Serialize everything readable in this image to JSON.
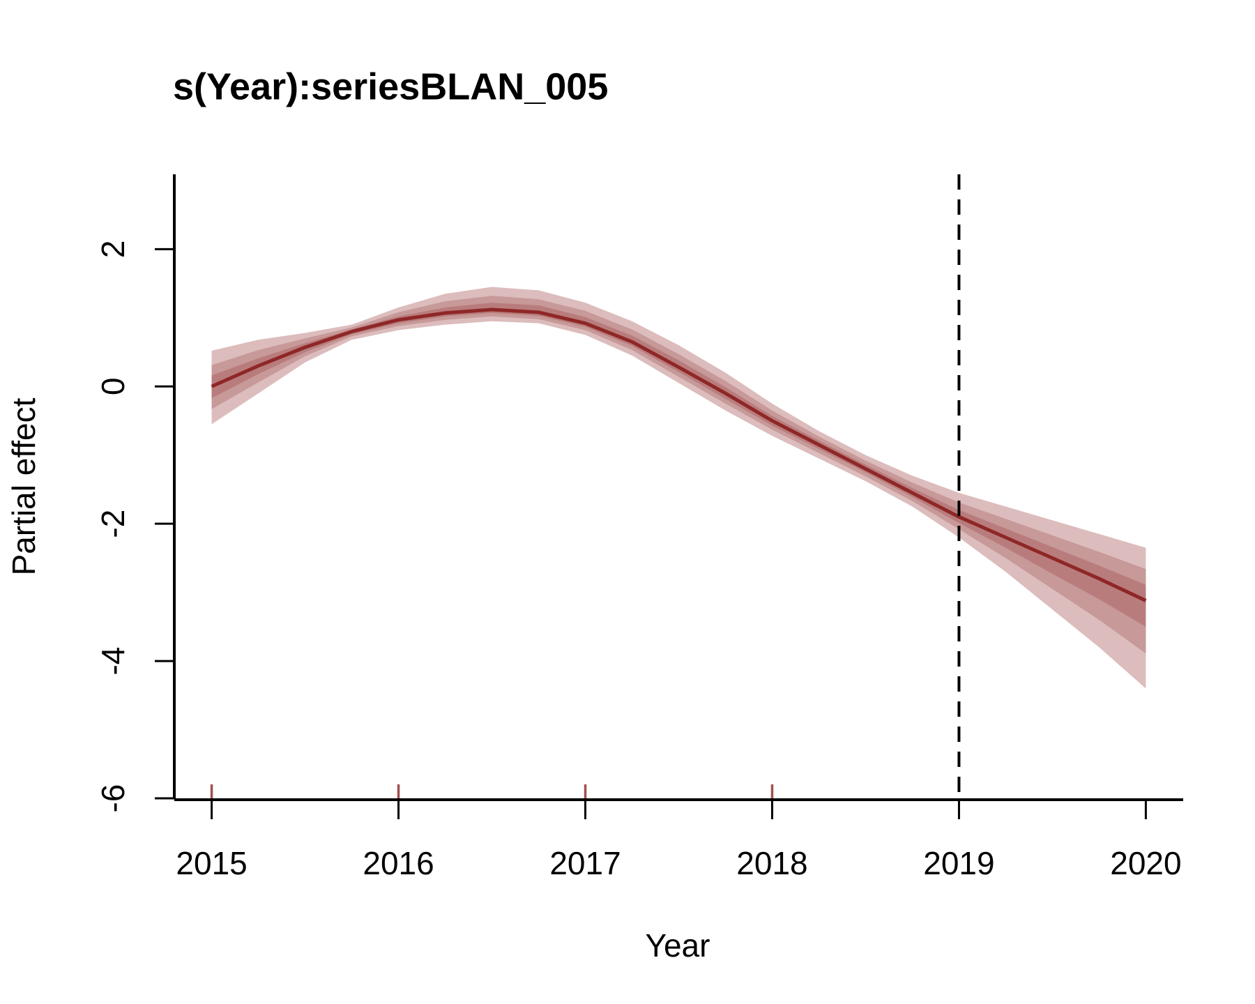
{
  "chart_data": {
    "type": "line",
    "title": "s(Year):seriesBLAN_005",
    "xlabel": "Year",
    "ylabel": "Partial effect",
    "x": [
      2015,
      2015.25,
      2015.5,
      2015.75,
      2016,
      2016.25,
      2016.5,
      2016.75,
      2017,
      2017.25,
      2017.5,
      2017.75,
      2018,
      2018.25,
      2018.5,
      2018.75,
      2019,
      2019.25,
      2019.5,
      2019.75,
      2020
    ],
    "series": [
      {
        "color": "#8F2727",
        "values": [
          0.0,
          0.3,
          0.57,
          0.8,
          0.97,
          1.07,
          1.12,
          1.08,
          0.92,
          0.65,
          0.28,
          -0.1,
          -0.5,
          -0.85,
          -1.2,
          -1.55,
          -1.9,
          -2.2,
          -2.5,
          -2.8,
          -3.12
        ]
      }
    ],
    "bands": [
      {
        "color": "#DCBCBC",
        "upper": [
          0.52,
          0.68,
          0.78,
          0.9,
          1.15,
          1.35,
          1.45,
          1.4,
          1.22,
          0.95,
          0.6,
          0.2,
          -0.25,
          -0.65,
          -1.0,
          -1.3,
          -1.55,
          -1.75,
          -1.95,
          -2.15,
          -2.35
        ],
        "lower": [
          -0.55,
          -0.1,
          0.35,
          0.68,
          0.82,
          0.9,
          0.95,
          0.92,
          0.75,
          0.45,
          0.05,
          -0.35,
          -0.72,
          -1.05,
          -1.38,
          -1.75,
          -2.2,
          -2.7,
          -3.25,
          -3.8,
          -4.4
        ]
      },
      {
        "color": "#C79999",
        "upper": [
          0.31,
          0.53,
          0.7,
          0.86,
          1.08,
          1.24,
          1.32,
          1.27,
          1.1,
          0.83,
          0.47,
          0.08,
          -0.35,
          -0.73,
          -1.08,
          -1.4,
          -1.69,
          -1.93,
          -2.17,
          -2.41,
          -2.66
        ],
        "lower": [
          -0.33,
          0.06,
          0.44,
          0.73,
          0.88,
          0.97,
          1.02,
          0.98,
          0.82,
          0.53,
          0.14,
          -0.25,
          -0.63,
          -0.97,
          -1.31,
          -1.67,
          -2.08,
          -2.5,
          -2.95,
          -3.4,
          -3.89
        ]
      },
      {
        "color": "#B97C7C",
        "upper": [
          0.16,
          0.41,
          0.63,
          0.83,
          1.02,
          1.15,
          1.22,
          1.18,
          1.01,
          0.74,
          0.38,
          -0.01,
          -0.43,
          -0.79,
          -1.14,
          -1.48,
          -1.8,
          -2.07,
          -2.34,
          -2.61,
          -2.89
        ],
        "lower": [
          -0.17,
          0.18,
          0.5,
          0.76,
          0.92,
          1.02,
          1.07,
          1.03,
          0.87,
          0.59,
          0.21,
          -0.18,
          -0.57,
          -0.91,
          -1.25,
          -1.61,
          -1.99,
          -2.35,
          -2.73,
          -3.1,
          -3.5
        ]
      }
    ],
    "rug": [
      2015,
      2016,
      2017,
      2018
    ],
    "rug_color": "#A25050",
    "vline": 2019,
    "xlim": [
      2014.8,
      2020.2
    ],
    "ylim": [
      -6,
      3.09
    ],
    "xticks": [
      2015,
      2016,
      2017,
      2018,
      2019,
      2020
    ],
    "yticks": [
      -6,
      -4,
      -2,
      0,
      2
    ]
  }
}
